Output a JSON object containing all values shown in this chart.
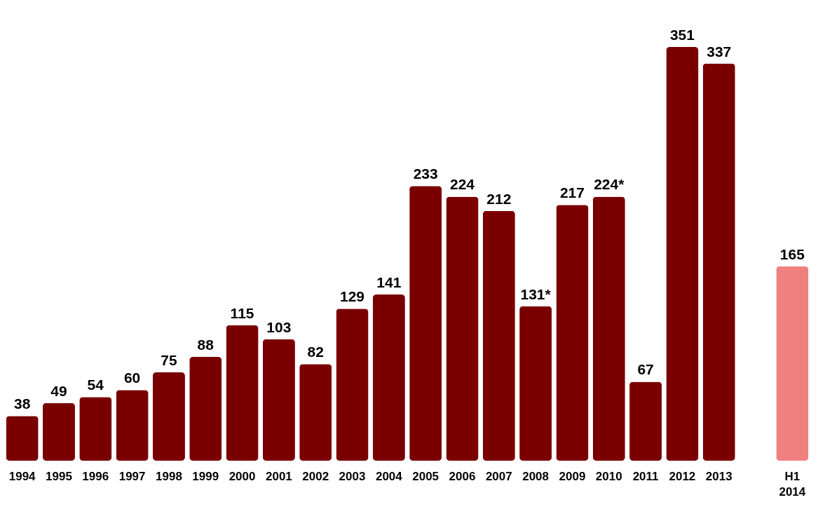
{
  "chart_data": {
    "type": "bar",
    "categories": [
      "1994",
      "1995",
      "1996",
      "1997",
      "1998",
      "1999",
      "2000",
      "2001",
      "2002",
      "2003",
      "2004",
      "2005",
      "2006",
      "2007",
      "2008",
      "2009",
      "2010",
      "2011",
      "2012",
      "2013",
      null,
      "H1\n2014"
    ],
    "values": [
      38,
      49,
      54,
      60,
      75,
      88,
      115,
      103,
      82,
      129,
      141,
      233,
      224,
      212,
      131,
      217,
      224,
      67,
      351,
      337,
      null,
      165
    ],
    "value_labels": [
      "38",
      "49",
      "54",
      "60",
      "75",
      "88",
      "115",
      "103",
      "82",
      "129",
      "141",
      "233",
      "224",
      "212",
      "131*",
      "217",
      "224*",
      "67",
      "351",
      "337",
      null,
      "165"
    ],
    "colors": [
      "#7a0000",
      "#7a0000",
      "#7a0000",
      "#7a0000",
      "#7a0000",
      "#7a0000",
      "#7a0000",
      "#7a0000",
      "#7a0000",
      "#7a0000",
      "#7a0000",
      "#7a0000",
      "#7a0000",
      "#7a0000",
      "#7a0000",
      "#7a0000",
      "#7a0000",
      "#7a0000",
      "#7a0000",
      "#7a0000",
      "#7a0000",
      "#f08080"
    ]
  }
}
